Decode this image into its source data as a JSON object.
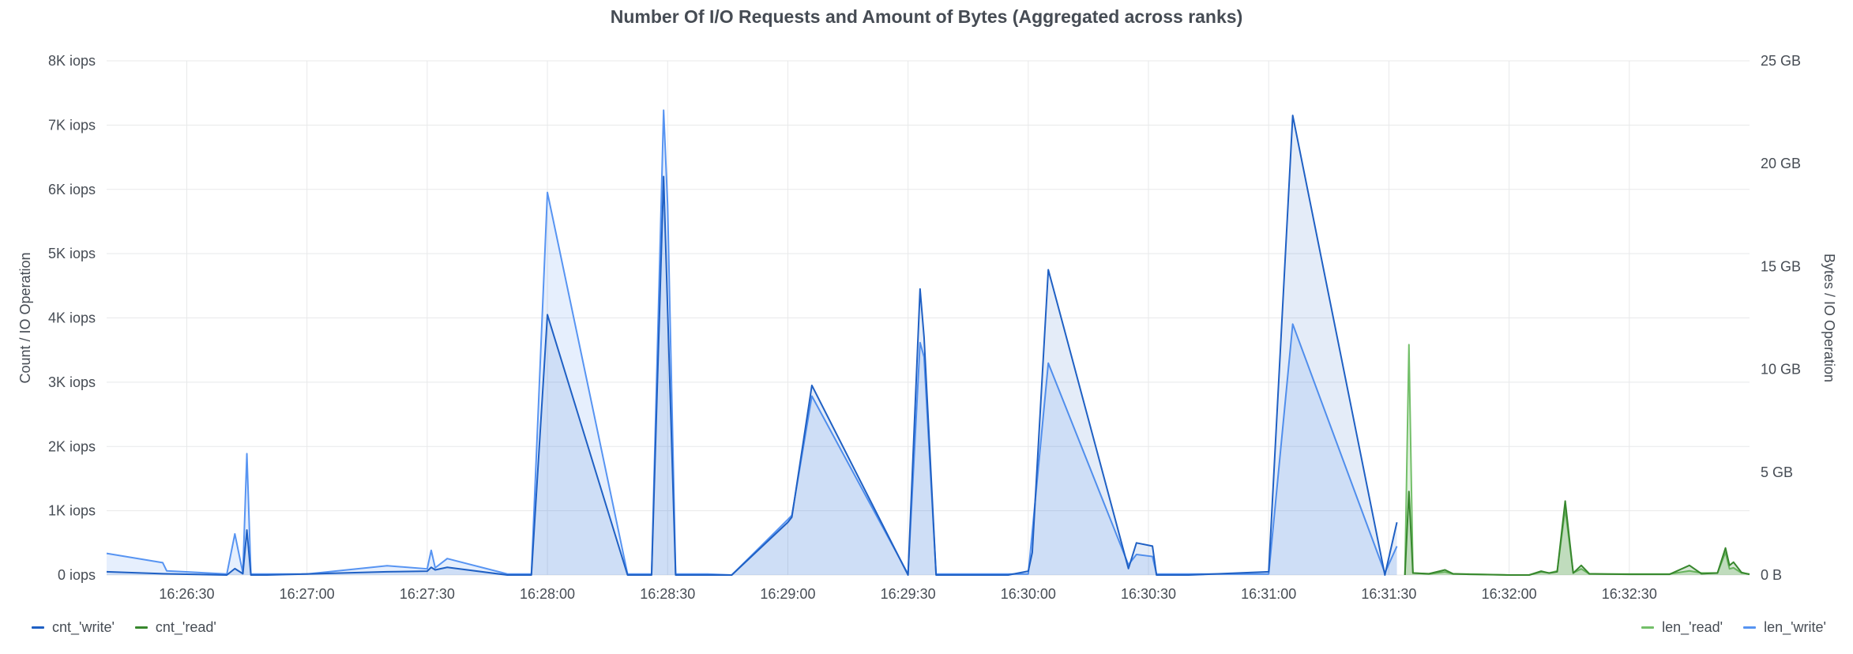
{
  "colors": {
    "cnt_write": "#1f60c4",
    "cnt_read": "#37872d",
    "len_write": "#5794f2",
    "len_read": "#73bf69",
    "grid": "#e8e9ea",
    "text": "#464c54"
  },
  "chart_data": {
    "type": "line",
    "title": "Number Of I/O Requests and Amount of Bytes (Aggregated across ranks)",
    "xlabel": "",
    "ylabel_left": "Count / IO Operation",
    "ylabel_right": "Bytes / IO Operation",
    "x_ticks": [
      "16:26:30",
      "16:27:00",
      "16:27:30",
      "16:28:00",
      "16:28:30",
      "16:29:00",
      "16:29:30",
      "16:30:00",
      "16:30:30",
      "16:31:00",
      "16:31:30",
      "16:32:00",
      "16:32:30"
    ],
    "xlim": [
      "16:26:10",
      "16:33:00"
    ],
    "y_left": {
      "ylim": [
        0,
        8000
      ],
      "ticks": [
        0,
        1000,
        2000,
        3000,
        4000,
        5000,
        6000,
        7000,
        8000
      ],
      "tick_labels": [
        "0 iops",
        "1K iops",
        "2K iops",
        "3K iops",
        "4K iops",
        "5K iops",
        "6K iops",
        "7K iops",
        "8K iops"
      ]
    },
    "y_right": {
      "ylim": [
        0,
        25
      ],
      "unit": "GB",
      "ticks": [
        0,
        5,
        10,
        15,
        20,
        25
      ],
      "tick_labels": [
        "0 B",
        "5 GB",
        "10 GB",
        "15 GB",
        "20 GB",
        "25 GB"
      ]
    },
    "grid": true,
    "legend_left": [
      "cnt_'write'",
      "cnt_'read'"
    ],
    "legend_right": [
      "len_'read'",
      "len_'write'"
    ],
    "series": [
      {
        "name": "len_'write'",
        "axis": "right",
        "unit": "GB",
        "fill": true,
        "points": [
          [
            "16:26:10",
            1.05
          ],
          [
            "16:26:24",
            0.6
          ],
          [
            "16:26:25",
            0.2
          ],
          [
            "16:26:40",
            0.05
          ],
          [
            "16:26:42",
            2.0
          ],
          [
            "16:26:44",
            0.1
          ],
          [
            "16:26:45",
            5.9
          ],
          [
            "16:26:46",
            0.05
          ],
          [
            "16:26:50",
            0.05
          ],
          [
            "16:27:00",
            0.05
          ],
          [
            "16:27:20",
            0.45
          ],
          [
            "16:27:30",
            0.3
          ],
          [
            "16:27:31",
            1.2
          ],
          [
            "16:27:32",
            0.35
          ],
          [
            "16:27:35",
            0.8
          ],
          [
            "16:27:50",
            0.05
          ],
          [
            "16:27:56",
            0.05
          ],
          [
            "16:28:00",
            18.6
          ],
          [
            "16:28:20",
            0.05
          ],
          [
            "16:28:26",
            0.05
          ],
          [
            "16:28:29",
            22.6
          ],
          [
            "16:28:30",
            18.0
          ],
          [
            "16:28:32",
            0.05
          ],
          [
            "16:28:40",
            0.05
          ],
          [
            "16:28:46",
            0.0
          ],
          [
            "16:29:00",
            2.7
          ],
          [
            "16:29:01",
            2.9
          ],
          [
            "16:29:06",
            8.7
          ],
          [
            "16:29:30",
            0.05
          ],
          [
            "16:29:33",
            11.3
          ],
          [
            "16:29:34",
            10.6
          ],
          [
            "16:29:37",
            0.05
          ],
          [
            "16:29:55",
            0.05
          ],
          [
            "16:30:00",
            0.05
          ],
          [
            "16:30:05",
            10.3
          ],
          [
            "16:30:25",
            0.5
          ],
          [
            "16:30:27",
            1.0
          ],
          [
            "16:30:31",
            0.9
          ],
          [
            "16:30:32",
            0.05
          ],
          [
            "16:30:40",
            0.05
          ],
          [
            "16:31:00",
            0.05
          ],
          [
            "16:31:06",
            12.2
          ],
          [
            "16:31:29",
            0.1
          ],
          [
            "16:31:32",
            1.4
          ]
        ]
      },
      {
        "name": "cnt_'write'",
        "axis": "left",
        "unit": "iops",
        "fill": true,
        "points": [
          [
            "16:26:10",
            50
          ],
          [
            "16:26:24",
            20
          ],
          [
            "16:26:40",
            0
          ],
          [
            "16:26:42",
            100
          ],
          [
            "16:26:44",
            20
          ],
          [
            "16:26:45",
            700
          ],
          [
            "16:26:46",
            0
          ],
          [
            "16:26:50",
            0
          ],
          [
            "16:27:20",
            50
          ],
          [
            "16:27:30",
            60
          ],
          [
            "16:27:31",
            120
          ],
          [
            "16:27:32",
            80
          ],
          [
            "16:27:35",
            120
          ],
          [
            "16:27:50",
            0
          ],
          [
            "16:27:56",
            0
          ],
          [
            "16:28:00",
            4050
          ],
          [
            "16:28:20",
            0
          ],
          [
            "16:28:26",
            0
          ],
          [
            "16:28:29",
            6200
          ],
          [
            "16:28:32",
            0
          ],
          [
            "16:28:40",
            0
          ],
          [
            "16:28:46",
            0
          ],
          [
            "16:29:00",
            820
          ],
          [
            "16:29:01",
            900
          ],
          [
            "16:29:06",
            2950
          ],
          [
            "16:29:30",
            0
          ],
          [
            "16:29:33",
            4450
          ],
          [
            "16:29:34",
            3700
          ],
          [
            "16:29:37",
            0
          ],
          [
            "16:29:55",
            0
          ],
          [
            "16:30:00",
            60
          ],
          [
            "16:30:01",
            350
          ],
          [
            "16:30:05",
            4750
          ],
          [
            "16:30:25",
            100
          ],
          [
            "16:30:27",
            500
          ],
          [
            "16:30:31",
            450
          ],
          [
            "16:30:32",
            0
          ],
          [
            "16:30:40",
            0
          ],
          [
            "16:31:00",
            50
          ],
          [
            "16:31:06",
            7150
          ],
          [
            "16:31:29",
            0
          ],
          [
            "16:31:32",
            820
          ]
        ]
      },
      {
        "name": "len_'read'",
        "axis": "right",
        "unit": "GB",
        "fill": true,
        "points": [
          [
            "16:31:34",
            0.0
          ],
          [
            "16:31:35",
            11.2
          ],
          [
            "16:31:36",
            0.1
          ],
          [
            "16:31:40",
            0.05
          ],
          [
            "16:31:44",
            0.15
          ],
          [
            "16:31:46",
            0.05
          ],
          [
            "16:31:50",
            0.05
          ],
          [
            "16:32:00",
            0.0
          ],
          [
            "16:32:05",
            0.0
          ],
          [
            "16:32:08",
            0.15
          ],
          [
            "16:32:10",
            0.1
          ],
          [
            "16:32:12",
            0.2
          ],
          [
            "16:32:14",
            3.2
          ],
          [
            "16:32:16",
            0.1
          ],
          [
            "16:32:18",
            0.3
          ],
          [
            "16:32:20",
            0.05
          ],
          [
            "16:32:30",
            0.05
          ],
          [
            "16:32:40",
            0.05
          ],
          [
            "16:32:45",
            0.2
          ],
          [
            "16:32:48",
            0.1
          ],
          [
            "16:32:52",
            0.1
          ],
          [
            "16:32:54",
            1.1
          ],
          [
            "16:32:55",
            0.3
          ],
          [
            "16:32:56",
            0.35
          ],
          [
            "16:32:58",
            0.1
          ],
          [
            "16:33:00",
            0.05
          ]
        ]
      },
      {
        "name": "cnt_'read'",
        "axis": "left",
        "unit": "iops",
        "fill": true,
        "points": [
          [
            "16:31:34",
            0
          ],
          [
            "16:31:35",
            1300
          ],
          [
            "16:31:36",
            30
          ],
          [
            "16:31:40",
            20
          ],
          [
            "16:31:44",
            80
          ],
          [
            "16:31:46",
            20
          ],
          [
            "16:31:50",
            10
          ],
          [
            "16:32:00",
            0
          ],
          [
            "16:32:05",
            0
          ],
          [
            "16:32:08",
            60
          ],
          [
            "16:32:10",
            30
          ],
          [
            "16:32:12",
            50
          ],
          [
            "16:32:14",
            1150
          ],
          [
            "16:32:16",
            30
          ],
          [
            "16:32:18",
            150
          ],
          [
            "16:32:20",
            20
          ],
          [
            "16:32:30",
            10
          ],
          [
            "16:32:40",
            10
          ],
          [
            "16:32:45",
            150
          ],
          [
            "16:32:48",
            20
          ],
          [
            "16:32:52",
            30
          ],
          [
            "16:32:54",
            420
          ],
          [
            "16:32:55",
            150
          ],
          [
            "16:32:56",
            200
          ],
          [
            "16:32:58",
            40
          ],
          [
            "16:33:00",
            10
          ]
        ]
      }
    ]
  }
}
